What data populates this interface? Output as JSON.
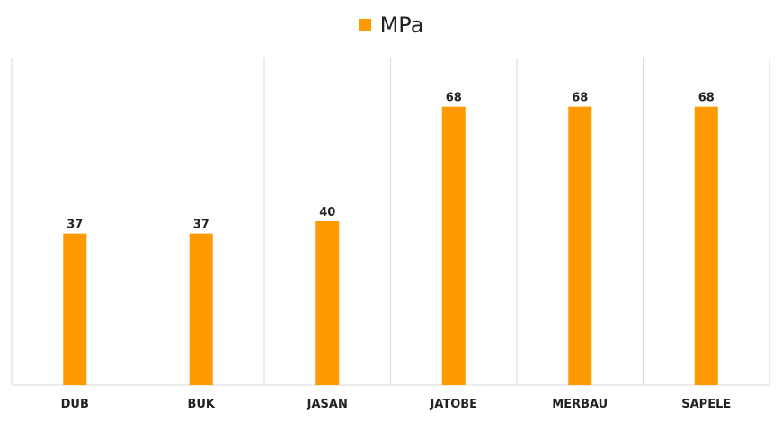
{
  "chart_data": {
    "type": "bar",
    "categories": [
      "DUB",
      "BUK",
      "JASAN",
      "JATOBE",
      "MERBAU",
      "SAPELE"
    ],
    "series": [
      {
        "name": "MPa",
        "values": [
          37,
          37,
          40,
          68,
          68,
          68
        ],
        "color": "#FF9900"
      }
    ],
    "data_labels": [
      "37",
      "37",
      "40",
      "68",
      "68",
      "68"
    ],
    "title": "",
    "xlabel": "",
    "ylabel": "",
    "ylim": [
      0,
      80
    ],
    "grid": "vertical category separators",
    "legend_position": "top-center"
  }
}
